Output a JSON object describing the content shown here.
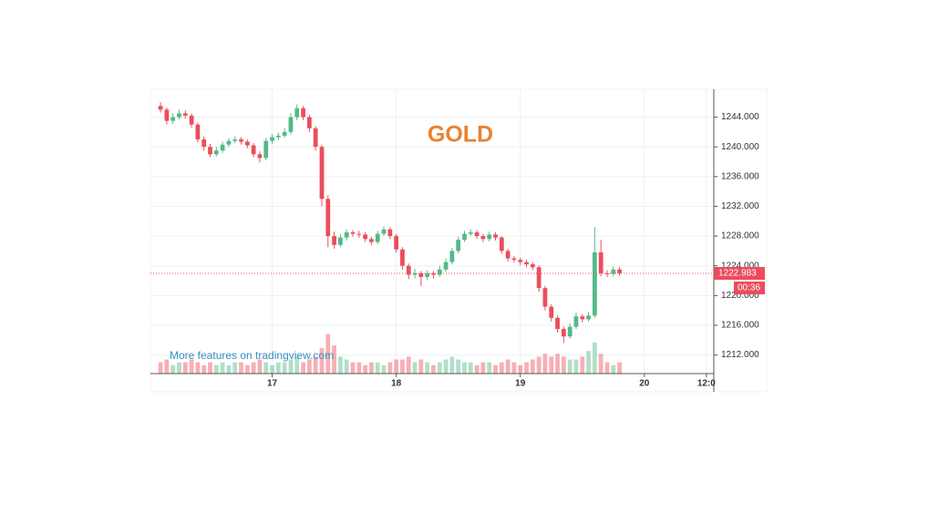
{
  "chart_data": {
    "type": "candlestick",
    "title": "GOLD",
    "watermark": "More features on tradingview.com",
    "x": [
      16.1,
      16.15,
      16.2,
      16.25,
      16.3,
      16.35,
      16.4,
      16.45,
      16.5,
      16.55,
      16.6,
      16.65,
      16.7,
      16.75,
      16.8,
      16.85,
      16.9,
      16.95,
      17.0,
      17.05,
      17.1,
      17.15,
      17.2,
      17.25,
      17.3,
      17.35,
      17.4,
      17.45,
      17.5,
      17.55,
      17.6,
      17.65,
      17.7,
      17.75,
      17.8,
      17.85,
      17.9,
      17.95,
      18.0,
      18.05,
      18.1,
      18.15,
      18.2,
      18.25,
      18.3,
      18.35,
      18.4,
      18.45,
      18.5,
      18.55,
      18.6,
      18.65,
      18.7,
      18.75,
      18.8,
      18.85,
      18.9,
      18.95,
      19.0,
      19.05,
      19.1,
      19.15,
      19.2,
      19.25,
      19.3,
      19.35,
      19.4,
      19.45,
      19.5,
      19.55,
      19.6,
      19.65,
      19.7,
      19.75,
      19.8
    ],
    "open": [
      1245.5,
      1245,
      1243.5,
      1244,
      1244.5,
      1244.2,
      1243,
      1241,
      1240,
      1239,
      1239.5,
      1240.3,
      1240.8,
      1241,
      1240.7,
      1240.2,
      1239,
      1238.5,
      1240.8,
      1241.3,
      1241.5,
      1242,
      1244,
      1245.2,
      1244,
      1242.5,
      1240,
      1233,
      1228,
      1226.8,
      1227.8,
      1228.5,
      1228.3,
      1228.2,
      1227.6,
      1227.2,
      1228.3,
      1228.9,
      1228,
      1226.2,
      1224,
      1222.8,
      1223,
      1222.5,
      1223,
      1222.8,
      1223.5,
      1224.5,
      1226,
      1227.5,
      1228.3,
      1228.5,
      1228,
      1227.6,
      1228.2,
      1227.8,
      1226,
      1225,
      1224.8,
      1224.5,
      1224.2,
      1223.8,
      1221,
      1218.5,
      1217,
      1215.5,
      1214.5,
      1215.8,
      1217.2,
      1216.8,
      1217.3,
      1225.8,
      1223,
      1222.9,
      1223.5
    ],
    "high": [
      1246,
      1245.3,
      1244.5,
      1245,
      1244.9,
      1244.5,
      1243.3,
      1241.4,
      1240.4,
      1240,
      1240.7,
      1241.2,
      1241.4,
      1241.3,
      1241,
      1240.5,
      1239.4,
      1241.2,
      1241.7,
      1241.9,
      1242.5,
      1244.5,
      1245.7,
      1245.5,
      1244.3,
      1242.8,
      1240.3,
      1233.5,
      1228.6,
      1228.3,
      1228.9,
      1228.8,
      1228.7,
      1228.5,
      1227.9,
      1228.7,
      1229.3,
      1229.2,
      1228.3,
      1226.5,
      1224.3,
      1223.6,
      1223.3,
      1223.4,
      1223.3,
      1224,
      1225,
      1226.4,
      1227.9,
      1228.7,
      1228.9,
      1228.8,
      1228.3,
      1228.6,
      1228.5,
      1228,
      1226.3,
      1225.3,
      1225.1,
      1224.8,
      1224.5,
      1224.1,
      1221.3,
      1218.8,
      1217.3,
      1215.8,
      1216.3,
      1217.7,
      1217.5,
      1217.8,
      1229.2,
      1227.5,
      1223.4,
      1223.9,
      1223.8
    ],
    "low": [
      1244.6,
      1243,
      1243.1,
      1243.7,
      1243.8,
      1242.6,
      1240.6,
      1239.5,
      1238.6,
      1238.7,
      1239.2,
      1240,
      1240.5,
      1240.3,
      1239.8,
      1238.6,
      1237.9,
      1238.2,
      1240.4,
      1240.9,
      1241.2,
      1241.7,
      1243.6,
      1243.6,
      1242,
      1239.5,
      1232,
      1226.5,
      1226.3,
      1226.5,
      1227.4,
      1227.9,
      1227.8,
      1227.2,
      1226.8,
      1226.9,
      1228,
      1227.6,
      1225.8,
      1223.5,
      1222.2,
      1222.3,
      1221.3,
      1222.1,
      1222.3,
      1222.5,
      1223.2,
      1224.2,
      1225.7,
      1227.2,
      1228,
      1227.6,
      1227.2,
      1227.3,
      1227.4,
      1225.6,
      1224.6,
      1224.4,
      1224.1,
      1223.8,
      1223.4,
      1220.5,
      1218,
      1216.5,
      1215,
      1213.6,
      1214.2,
      1215.5,
      1216.4,
      1216.5,
      1217,
      1222.6,
      1222.5,
      1222.6,
      1222.7
    ],
    "close": [
      1245,
      1243.5,
      1244,
      1244.5,
      1244.2,
      1243,
      1241,
      1240,
      1239,
      1239.5,
      1240.3,
      1240.8,
      1241,
      1240.7,
      1240.2,
      1239,
      1238.5,
      1240.8,
      1241.3,
      1241.5,
      1242,
      1244,
      1245.2,
      1244,
      1242.5,
      1240,
      1233,
      1228,
      1226.8,
      1227.8,
      1228.5,
      1228.3,
      1228.2,
      1227.6,
      1227.2,
      1228.3,
      1228.9,
      1228,
      1226.2,
      1224,
      1222.8,
      1223,
      1222.5,
      1223,
      1222.8,
      1223.5,
      1224.5,
      1226,
      1227.5,
      1228.3,
      1228.5,
      1228,
      1227.6,
      1228.2,
      1227.8,
      1226,
      1225,
      1224.8,
      1224.5,
      1224.2,
      1223.8,
      1221,
      1218.5,
      1217,
      1215.5,
      1214.5,
      1215.8,
      1217.2,
      1216.8,
      1217.3,
      1225.8,
      1223,
      1222.9,
      1223.5,
      1223
    ],
    "volume": [
      4,
      5,
      3,
      4,
      4,
      5,
      4,
      3,
      4,
      3,
      4,
      3,
      4,
      4,
      3,
      4,
      5,
      4,
      3,
      4,
      4,
      5,
      6,
      4,
      5,
      6,
      9,
      14,
      10,
      6,
      5,
      4,
      4,
      3,
      4,
      4,
      3,
      4,
      5,
      5,
      6,
      4,
      5,
      4,
      3,
      4,
      5,
      6,
      5,
      4,
      4,
      3,
      4,
      4,
      3,
      4,
      5,
      4,
      3,
      4,
      5,
      6,
      7,
      6,
      7,
      6,
      5,
      5,
      6,
      8,
      11,
      7,
      4,
      3,
      4
    ],
    "up_color": "#53b987",
    "down_color": "#eb4d5c",
    "last_price": 1222.983,
    "countdown": "00:36",
    "xlim": [
      16.07,
      20.56
    ],
    "xticks": [
      17,
      18,
      19,
      20,
      {
        "value": 20.5,
        "label": "12:0"
      }
    ],
    "ylim": [
      1209.5,
      1247.5
    ],
    "yticks": [
      {
        "value": 1212,
        "label": "1212.000"
      },
      {
        "value": 1216,
        "label": "1216.000"
      },
      {
        "value": 1220,
        "label": "1220.000"
      },
      {
        "value": 1224,
        "label": "1224.000"
      },
      {
        "value": 1228,
        "label": "1228.000"
      },
      {
        "value": 1232,
        "label": "1232.000"
      },
      {
        "value": 1236,
        "label": "1236.000"
      },
      {
        "value": 1240,
        "label": "1240.000"
      },
      {
        "value": 1244,
        "label": "1244.000"
      }
    ],
    "y2lim": [
      0,
      100
    ],
    "grid": true
  }
}
